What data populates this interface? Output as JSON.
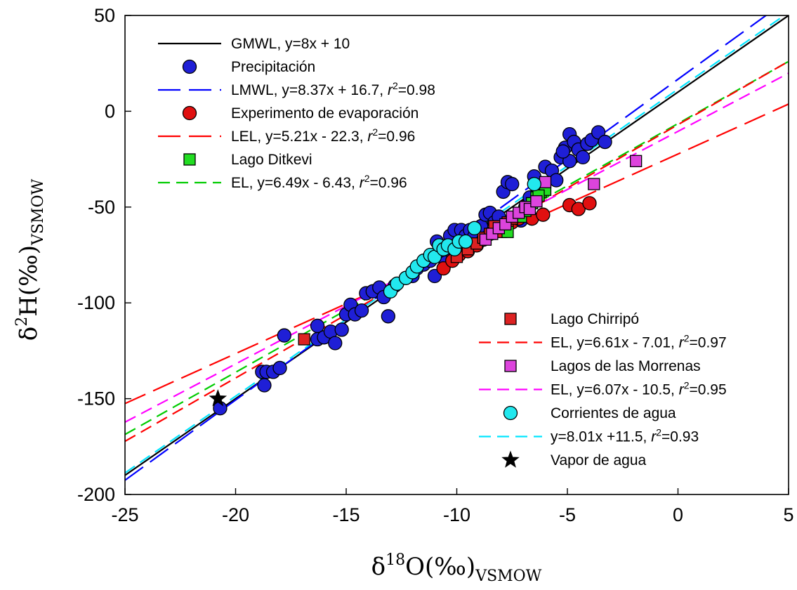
{
  "chart_data": {
    "type": "scatter",
    "xlabel": {
      "base": "δ",
      "sup": "18",
      "main": "O(‰)",
      "sub": "VSMOW"
    },
    "ylabel": {
      "base": "δ",
      "sup": "2",
      "main": "H(‰)",
      "sub": "VSMOW"
    },
    "xlim": [
      -25,
      5
    ],
    "ylim": [
      -200,
      50
    ],
    "xticks": [
      -25,
      -20,
      -15,
      -10,
      -5,
      0,
      5
    ],
    "yticks": [
      -200,
      -150,
      -100,
      -50,
      0,
      50
    ],
    "xtick_labels": [
      "-25",
      "-20",
      "-15",
      "-10",
      "-5",
      "0",
      "5"
    ],
    "ytick_labels": [
      "-200",
      "-150",
      "-100",
      "-50",
      "0",
      "50"
    ],
    "grid": false,
    "lines": [
      {
        "id": "gmwl",
        "slope": 8,
        "intercept": 10,
        "color": "#000000",
        "dash": "solid"
      },
      {
        "id": "lmwl",
        "slope": 8.37,
        "intercept": 16.7,
        "color": "#0000ff",
        "dash": "long"
      },
      {
        "id": "lel",
        "slope": 5.21,
        "intercept": -22.3,
        "color": "#ff0000",
        "dash": "long"
      },
      {
        "id": "el-ditkevi",
        "slope": 6.49,
        "intercept": -6.43,
        "color": "#00cc00",
        "dash": "short"
      },
      {
        "id": "el-chirripo",
        "slope": 6.61,
        "intercept": -7.01,
        "color": "#ff0000",
        "dash": "short"
      },
      {
        "id": "el-morrenas",
        "slope": 6.07,
        "intercept": -10.5,
        "color": "#ff00ff",
        "dash": "short"
      },
      {
        "id": "rl-corrientes",
        "slope": 8.01,
        "intercept": 11.5,
        "color": "#00e5ff",
        "dash": "short"
      }
    ],
    "series": [
      {
        "id": "precipitacion",
        "name": "Precipitación",
        "marker": "circle",
        "color": "#1f1fd6",
        "points": [
          [
            -20.7,
            -155
          ],
          [
            -18.8,
            -136
          ],
          [
            -18.6,
            -136
          ],
          [
            -18.7,
            -143
          ],
          [
            -18.3,
            -136
          ],
          [
            -18.0,
            -134
          ],
          [
            -17.8,
            -117
          ],
          [
            -16.3,
            -112
          ],
          [
            -16.3,
            -119
          ],
          [
            -16.0,
            -118
          ],
          [
            -15.7,
            -115
          ],
          [
            -15.5,
            -121
          ],
          [
            -15.2,
            -114
          ],
          [
            -15.0,
            -106
          ],
          [
            -14.8,
            -101
          ],
          [
            -14.6,
            -106
          ],
          [
            -14.3,
            -104
          ],
          [
            -14.1,
            -95
          ],
          [
            -13.8,
            -94
          ],
          [
            -13.5,
            -92
          ],
          [
            -13.3,
            -97
          ],
          [
            -13.1,
            -107
          ],
          [
            -12.8,
            -91
          ],
          [
            -12.3,
            -87
          ],
          [
            -12.0,
            -86
          ],
          [
            -11.8,
            -82
          ],
          [
            -11.5,
            -80
          ],
          [
            -11.2,
            -78
          ],
          [
            -11.0,
            -86
          ],
          [
            -10.9,
            -68
          ],
          [
            -10.6,
            -73
          ],
          [
            -10.5,
            -79
          ],
          [
            -10.3,
            -65
          ],
          [
            -10.1,
            -62
          ],
          [
            -10.0,
            -74
          ],
          [
            -9.8,
            -62
          ],
          [
            -9.6,
            -65
          ],
          [
            -9.4,
            -62
          ],
          [
            -9.2,
            -65
          ],
          [
            -8.9,
            -60
          ],
          [
            -8.7,
            -54
          ],
          [
            -8.5,
            -53
          ],
          [
            -8.3,
            -58
          ],
          [
            -8.1,
            -55
          ],
          [
            -7.9,
            -42
          ],
          [
            -7.7,
            -37
          ],
          [
            -7.5,
            -38
          ],
          [
            -7.3,
            -55
          ],
          [
            -7.1,
            -57
          ],
          [
            -6.9,
            -50
          ],
          [
            -6.7,
            -45
          ],
          [
            -6.5,
            -34
          ],
          [
            -6.3,
            -40
          ],
          [
            -6.0,
            -29
          ],
          [
            -5.7,
            -31
          ],
          [
            -5.5,
            -36
          ],
          [
            -5.3,
            -24
          ],
          [
            -5.1,
            -19
          ],
          [
            -4.9,
            -12
          ],
          [
            -4.7,
            -16
          ],
          [
            -4.5,
            -20
          ],
          [
            -4.3,
            -24
          ],
          [
            -4.1,
            -17
          ],
          [
            -3.9,
            -15
          ],
          [
            -3.6,
            -11
          ],
          [
            -3.3,
            -16
          ],
          [
            -4.9,
            -26
          ],
          [
            -5.2,
            -21
          ]
        ]
      },
      {
        "id": "evaporacion",
        "name": "Experimento de evaporación",
        "marker": "circle",
        "color": "#e01010",
        "points": [
          [
            -10.6,
            -82
          ],
          [
            -10.2,
            -78
          ],
          [
            -9.9,
            -75
          ],
          [
            -9.5,
            -73
          ],
          [
            -9.1,
            -70
          ],
          [
            -8.8,
            -67
          ],
          [
            -8.5,
            -64
          ],
          [
            -8.2,
            -62
          ],
          [
            -7.9,
            -60
          ],
          [
            -7.5,
            -58
          ],
          [
            -7.2,
            -56
          ],
          [
            -6.9,
            -53
          ],
          [
            -6.6,
            -56
          ],
          [
            -6.1,
            -54
          ],
          [
            -4.9,
            -49
          ],
          [
            -4.5,
            -51
          ],
          [
            -4.0,
            -48
          ]
        ]
      },
      {
        "id": "ditkevi",
        "name": "Lago Ditkevi",
        "marker": "square",
        "color": "#22dd22",
        "points": [
          [
            -7.7,
            -63
          ],
          [
            -7.1,
            -55
          ],
          [
            -6.9,
            -52
          ],
          [
            -6.6,
            -48
          ],
          [
            -6.4,
            -45
          ],
          [
            -6.2,
            -42
          ],
          [
            -6.0,
            -41
          ],
          [
            -6.3,
            -44
          ]
        ]
      },
      {
        "id": "chirripo",
        "name": "Lago Chirripó",
        "marker": "square",
        "color": "#dd2222",
        "points": [
          [
            -16.9,
            -119
          ],
          [
            -10.0,
            -76
          ],
          [
            -9.5,
            -72
          ],
          [
            -9.1,
            -69
          ],
          [
            -8.8,
            -66
          ],
          [
            -8.5,
            -64
          ],
          [
            -8.3,
            -60
          ],
          [
            -8.0,
            -63
          ],
          [
            -7.7,
            -58
          ],
          [
            -7.5,
            -56
          ]
        ]
      },
      {
        "id": "morrenas",
        "name": "Lagos de las Morrenas",
        "marker": "square",
        "color": "#dd44dd",
        "points": [
          [
            -8.7,
            -67
          ],
          [
            -8.4,
            -64
          ],
          [
            -8.1,
            -61
          ],
          [
            -7.8,
            -59
          ],
          [
            -7.5,
            -55
          ],
          [
            -7.2,
            -53
          ],
          [
            -6.9,
            -50
          ],
          [
            -6.7,
            -51
          ],
          [
            -6.4,
            -47
          ],
          [
            -6.0,
            -37
          ],
          [
            -3.8,
            -38
          ],
          [
            -1.9,
            -26
          ]
        ]
      },
      {
        "id": "corrientes",
        "name": "Corrientes de agua",
        "marker": "circle",
        "color": "#22e8ee",
        "points": [
          [
            -13.0,
            -94
          ],
          [
            -12.7,
            -90
          ],
          [
            -12.3,
            -87
          ],
          [
            -12.0,
            -84
          ],
          [
            -11.8,
            -81
          ],
          [
            -11.5,
            -78
          ],
          [
            -11.2,
            -75
          ],
          [
            -11.0,
            -76
          ],
          [
            -10.8,
            -70
          ],
          [
            -10.6,
            -72
          ],
          [
            -10.4,
            -70
          ],
          [
            -10.1,
            -72
          ],
          [
            -9.9,
            -68
          ],
          [
            -9.6,
            -68
          ],
          [
            -9.2,
            -61
          ],
          [
            -6.5,
            -38
          ]
        ]
      },
      {
        "id": "vapor",
        "name": "Vapor de agua",
        "marker": "star",
        "color": "#000000",
        "points": [
          [
            -20.8,
            -150
          ]
        ]
      }
    ],
    "legend_top": {
      "position": "top-left",
      "items": [
        {
          "kind": "line",
          "ref": "gmwl",
          "text": "GMWL, y=8x + 10"
        },
        {
          "kind": "marker",
          "ref": "precipitacion",
          "text": "Precipitación"
        },
        {
          "kind": "line",
          "ref": "lmwl",
          "text": "LMWL, y=8.37x + 16.7, ",
          "r2": "=0.98"
        },
        {
          "kind": "marker",
          "ref": "evaporacion",
          "text": "Experimento de evaporación"
        },
        {
          "kind": "line",
          "ref": "lel",
          "text": "LEL, y=5.21x - 22.3, ",
          "r2": "=0.96"
        },
        {
          "kind": "marker",
          "ref": "ditkevi",
          "text": "Lago Ditkevi"
        },
        {
          "kind": "line",
          "ref": "el-ditkevi",
          "text": "EL, y=6.49x - 6.43, ",
          "r2": "=0.96"
        }
      ]
    },
    "legend_bottom": {
      "position": "bottom-right",
      "items": [
        {
          "kind": "marker",
          "ref": "chirripo",
          "text": "Lago Chirripó"
        },
        {
          "kind": "line",
          "ref": "el-chirripo",
          "text": "EL, y=6.61x - 7.01, ",
          "r2": "=0.97"
        },
        {
          "kind": "marker",
          "ref": "morrenas",
          "text": "Lagos de las Morrenas"
        },
        {
          "kind": "line",
          "ref": "el-morrenas",
          "text": "EL, y=6.07x - 10.5, ",
          "r2": "=0.95"
        },
        {
          "kind": "marker",
          "ref": "corrientes",
          "text": "Corrientes de agua"
        },
        {
          "kind": "line",
          "ref": "rl-corrientes",
          "text": "y=8.01x +11.5, ",
          "r2": "=0.93"
        },
        {
          "kind": "marker",
          "ref": "vapor",
          "text": "Vapor de agua"
        }
      ]
    }
  }
}
